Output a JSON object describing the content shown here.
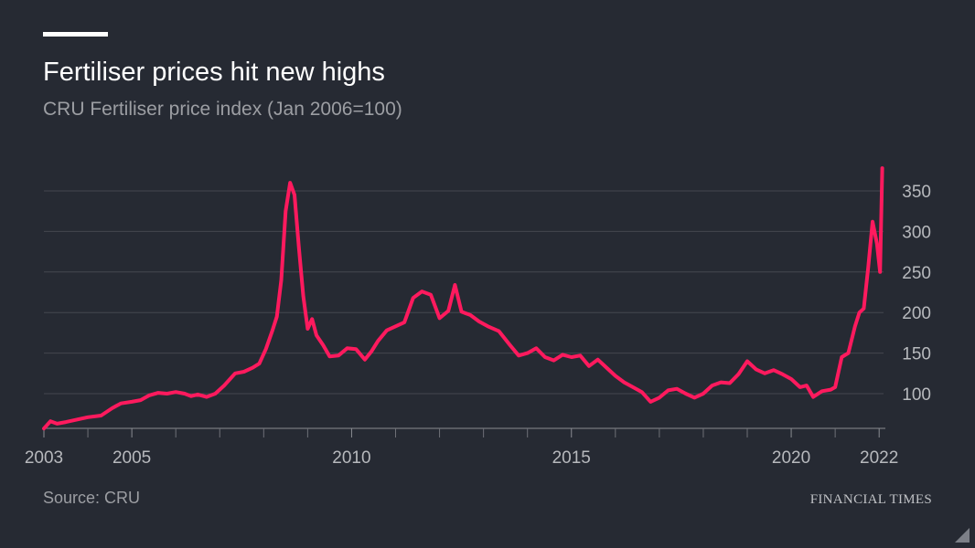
{
  "header": {
    "title": "Fertiliser prices hit new highs",
    "subtitle": "CRU Fertiliser price index (Jan 2006=100)"
  },
  "footer": {
    "source": "Source: CRU",
    "brand": "FINANCIAL TIMES"
  },
  "colors": {
    "background": "#262a33",
    "line": "#ff1a5e",
    "grid": "#44474f",
    "axis_text": "#b7b9bd",
    "title": "#ffffff",
    "subtitle": "#9c9ea3"
  },
  "chart_data": {
    "type": "line",
    "title": "Fertiliser prices hit new highs",
    "subtitle": "CRU Fertiliser price index (Jan 2006=100)",
    "xlabel": "",
    "ylabel": "",
    "xlim": [
      2003,
      2022.1
    ],
    "ylim": [
      57,
      380
    ],
    "x_ticks": [
      2003,
      2005,
      2010,
      2015,
      2020,
      2022
    ],
    "x_tick_labels": [
      "2003",
      "2005",
      "2010",
      "2015",
      "2020",
      "2022"
    ],
    "x_minor_ticks": [
      2004,
      2006,
      2007,
      2008,
      2009,
      2011,
      2012,
      2013,
      2014,
      2016,
      2017,
      2018,
      2019,
      2021
    ],
    "y_ticks": [
      100,
      150,
      200,
      250,
      300,
      350
    ],
    "y_tick_labels": [
      "100",
      "150",
      "200",
      "250",
      "300",
      "350"
    ],
    "y_axis_side": "right",
    "grid": true,
    "legend": "none",
    "series": [
      {
        "color": "#ff1a5e",
        "x": [
          2003.0,
          2003.15,
          2003.3,
          2003.5,
          2003.75,
          2004.0,
          2004.3,
          2004.55,
          2004.75,
          2005.0,
          2005.2,
          2005.4,
          2005.6,
          2005.8,
          2006.0,
          2006.2,
          2006.35,
          2006.5,
          2006.7,
          2006.9,
          2007.1,
          2007.35,
          2007.55,
          2007.75,
          2007.9,
          2008.05,
          2008.2,
          2008.3,
          2008.4,
          2008.5,
          2008.6,
          2008.7,
          2008.8,
          2008.9,
          2009.0,
          2009.1,
          2009.2,
          2009.35,
          2009.5,
          2009.7,
          2009.9,
          2010.1,
          2010.3,
          2010.45,
          2010.6,
          2010.8,
          2011.0,
          2011.2,
          2011.4,
          2011.6,
          2011.8,
          2012.0,
          2012.2,
          2012.35,
          2012.5,
          2012.7,
          2012.9,
          2013.1,
          2013.35,
          2013.6,
          2013.8,
          2014.0,
          2014.2,
          2014.4,
          2014.6,
          2014.8,
          2015.0,
          2015.2,
          2015.4,
          2015.6,
          2015.8,
          2016.0,
          2016.2,
          2016.4,
          2016.6,
          2016.8,
          2017.0,
          2017.2,
          2017.4,
          2017.6,
          2017.8,
          2018.0,
          2018.2,
          2018.4,
          2018.6,
          2018.8,
          2019.0,
          2019.2,
          2019.4,
          2019.6,
          2019.8,
          2020.0,
          2020.2,
          2020.35,
          2020.5,
          2020.7,
          2020.9,
          2021.0,
          2021.15,
          2021.3,
          2021.45,
          2021.55,
          2021.65,
          2021.75,
          2021.85,
          2021.95,
          2022.02,
          2022.07
        ],
        "y": [
          57,
          66,
          63,
          65,
          68,
          71,
          73,
          82,
          88,
          90,
          92,
          98,
          101,
          100,
          102,
          100,
          97,
          99,
          96,
          100,
          110,
          125,
          127,
          132,
          137,
          155,
          178,
          195,
          240,
          325,
          360,
          345,
          280,
          220,
          180,
          192,
          172,
          160,
          146,
          147,
          156,
          155,
          142,
          152,
          165,
          178,
          183,
          188,
          218,
          226,
          222,
          193,
          202,
          234,
          201,
          197,
          189,
          183,
          177,
          160,
          147,
          150,
          156,
          145,
          141,
          148,
          145,
          147,
          134,
          142,
          132,
          122,
          114,
          108,
          102,
          90,
          95,
          104,
          106,
          100,
          95,
          100,
          110,
          114,
          113,
          124,
          140,
          130,
          125,
          129,
          124,
          118,
          108,
          110,
          96,
          103,
          105,
          108,
          145,
          150,
          183,
          200,
          205,
          255,
          312,
          285,
          250,
          378
        ]
      }
    ]
  }
}
